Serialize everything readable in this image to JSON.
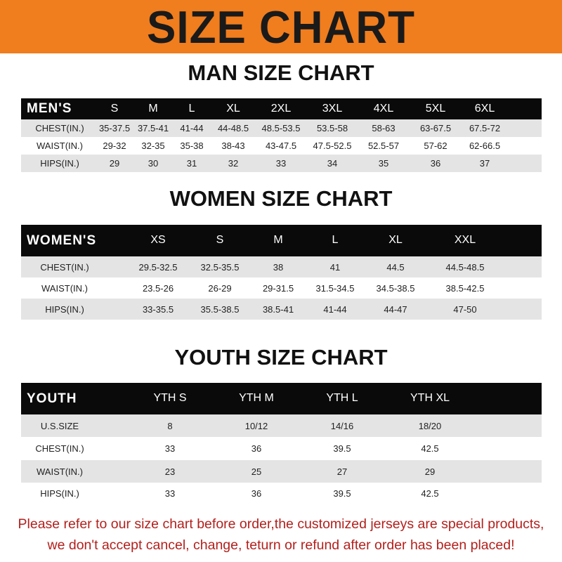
{
  "title": "SIZE CHART",
  "colors": {
    "banner": "#f07d1e",
    "header_bg": "#0a0a0a",
    "footer_text": "#b3201c"
  },
  "tables": [
    {
      "title": "MAN SIZE CHART",
      "header": [
        "MEN'S",
        "S",
        "M",
        "L",
        "XL",
        "2XL",
        "3XL",
        "4XL",
        "5XL",
        "6XL"
      ],
      "rows": [
        [
          "CHEST(IN.)",
          "35-37.5",
          "37.5-41",
          "41-44",
          "44-48.5",
          "48.5-53.5",
          "53.5-58",
          "58-63",
          "63-67.5",
          "67.5-72"
        ],
        [
          "WAIST(IN.)",
          "29-32",
          "32-35",
          "35-38",
          "38-43",
          "43-47.5",
          "47.5-52.5",
          "52.5-57",
          "57-62",
          "62-66.5"
        ],
        [
          "HIPS(IN.)",
          "29",
          "30",
          "31",
          "32",
          "33",
          "34",
          "35",
          "36",
          "37"
        ]
      ]
    },
    {
      "title": "WOMEN SIZE CHART",
      "header": [
        "WOMEN'S",
        "XS",
        "S",
        "M",
        "L",
        "XL",
        "XXL"
      ],
      "rows": [
        [
          "CHEST(IN.)",
          "29.5-32.5",
          "32.5-35.5",
          "38",
          "41",
          "44.5",
          "44.5-48.5"
        ],
        [
          "WAIST(IN.)",
          "23.5-26",
          "26-29",
          "29-31.5",
          "31.5-34.5",
          "34.5-38.5",
          "38.5-42.5"
        ],
        [
          "HIPS(IN.)",
          "33-35.5",
          "35.5-38.5",
          "38.5-41",
          "41-44",
          "44-47",
          "47-50"
        ]
      ]
    },
    {
      "title": "YOUTH SIZE CHART",
      "header": [
        "YOUTH",
        "YTH S",
        "YTH M",
        "YTH L",
        "YTH XL"
      ],
      "rows": [
        [
          "U.S.SIZE",
          "8",
          "10/12",
          "14/16",
          "18/20"
        ],
        [
          "CHEST(IN.)",
          "33",
          "36",
          "39.5",
          "42.5"
        ],
        [
          "WAIST(IN.)",
          "23",
          "25",
          "27",
          "29"
        ],
        [
          "HIPS(IN.)",
          "33",
          "36",
          "39.5",
          "42.5"
        ]
      ]
    }
  ],
  "footer": {
    "line1": "Please refer to our size chart before order,the customized jerseys are special products,",
    "line2": "we don't accept cancel, change, teturn or refund after order has been placed!"
  }
}
